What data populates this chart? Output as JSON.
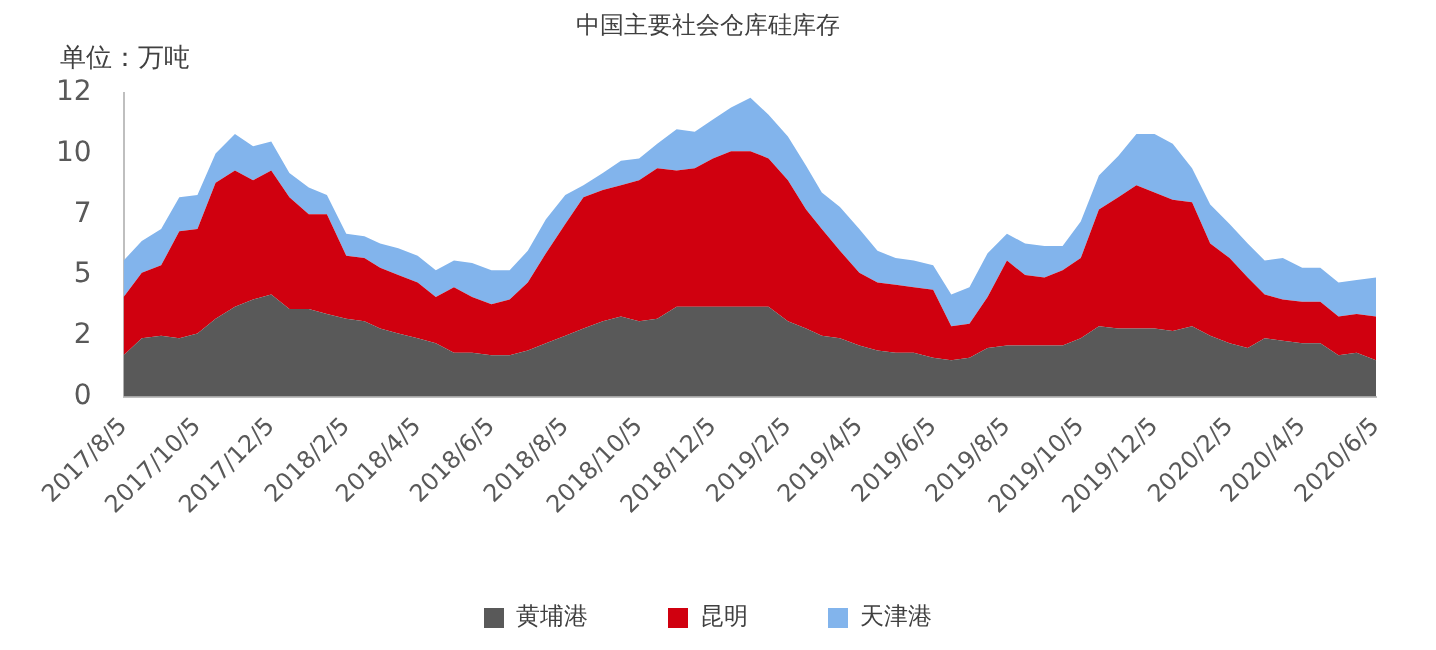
{
  "chart_data": {
    "type": "area",
    "title": "中国主要社会仓库硅库存",
    "annotations": [
      "单位：万吨"
    ],
    "x": [
      "2017-08-05",
      "2017-08-20",
      "2017-09-05",
      "2017-09-20",
      "2017-10-05",
      "2017-10-20",
      "2017-11-05",
      "2017-11-20",
      "2017-12-05",
      "2017-12-20",
      "2018-01-05",
      "2018-01-20",
      "2018-02-05",
      "2018-02-20",
      "2018-03-05",
      "2018-03-20",
      "2018-04-05",
      "2018-04-20",
      "2018-05-05",
      "2018-05-20",
      "2018-06-05",
      "2018-06-20",
      "2018-07-05",
      "2018-07-20",
      "2018-08-05",
      "2018-08-20",
      "2018-09-05",
      "2018-09-20",
      "2018-10-05",
      "2018-10-20",
      "2018-11-05",
      "2018-11-20",
      "2018-12-05",
      "2018-12-20",
      "2019-01-05",
      "2019-01-20",
      "2019-02-05",
      "2019-02-20",
      "2019-03-05",
      "2019-03-20",
      "2019-04-05",
      "2019-04-20",
      "2019-05-05",
      "2019-05-20",
      "2019-06-05",
      "2019-06-20",
      "2019-07-05",
      "2019-07-20",
      "2019-08-05",
      "2019-08-20",
      "2019-09-05",
      "2019-09-20",
      "2019-10-05",
      "2019-10-20",
      "2019-11-05",
      "2019-11-20",
      "2019-12-05",
      "2019-12-20",
      "2020-01-05",
      "2020-01-20",
      "2020-02-05",
      "2020-02-20",
      "2020-03-05",
      "2020-03-20",
      "2020-04-05",
      "2020-04-20",
      "2020-05-05",
      "2020-05-20",
      "2020-06-05"
    ],
    "stacked": true,
    "series": [
      {
        "name": "黄埔港",
        "color": "#595959",
        "values": [
          1.7,
          2.4,
          2.5,
          2.4,
          2.6,
          3.2,
          3.7,
          4.0,
          4.2,
          3.6,
          3.6,
          3.4,
          3.2,
          3.1,
          2.8,
          2.6,
          2.4,
          2.2,
          1.8,
          1.8,
          1.7,
          1.7,
          1.9,
          2.2,
          2.5,
          2.8,
          3.1,
          3.3,
          3.1,
          3.2,
          3.7,
          3.7,
          3.7,
          3.7,
          3.7,
          3.7,
          3.1,
          2.8,
          2.5,
          2.4,
          2.1,
          1.9,
          1.8,
          1.8,
          1.6,
          1.5,
          1.6,
          2.0,
          2.1,
          2.1,
          2.1,
          2.1,
          2.4,
          2.9,
          2.8,
          2.8,
          2.8,
          2.7,
          2.9,
          2.5,
          2.2,
          2.0,
          2.4,
          2.3,
          2.2,
          2.2,
          1.7,
          1.8,
          1.5
        ]
      },
      {
        "name": "昆明",
        "color": "#d0000f",
        "values": [
          2.4,
          2.7,
          2.9,
          4.4,
          4.3,
          5.6,
          5.6,
          4.9,
          5.1,
          4.6,
          3.9,
          4.1,
          2.6,
          2.6,
          2.5,
          2.4,
          2.3,
          1.9,
          2.7,
          2.3,
          2.1,
          2.3,
          2.8,
          3.7,
          4.6,
          5.4,
          5.4,
          5.4,
          5.8,
          6.2,
          5.6,
          5.7,
          6.1,
          6.4,
          6.4,
          6.1,
          5.8,
          4.9,
          4.4,
          3.6,
          3.0,
          2.8,
          2.8,
          2.7,
          2.8,
          1.4,
          1.4,
          2.1,
          3.5,
          2.9,
          2.8,
          3.1,
          3.3,
          4.8,
          5.4,
          5.9,
          5.6,
          5.4,
          5.1,
          3.8,
          3.5,
          2.9,
          1.8,
          1.7,
          1.7,
          1.7,
          1.6,
          1.6,
          1.8
        ]
      },
      {
        "name": "天津港",
        "color": "#82b4ec",
        "values": [
          1.5,
          1.3,
          1.5,
          1.4,
          1.4,
          1.2,
          1.5,
          1.4,
          1.2,
          1.0,
          1.1,
          0.8,
          0.9,
          0.9,
          1.0,
          1.1,
          1.1,
          1.1,
          1.1,
          1.4,
          1.4,
          1.2,
          1.3,
          1.4,
          1.2,
          0.5,
          0.7,
          1.0,
          0.9,
          1.0,
          1.7,
          1.5,
          1.6,
          1.8,
          2.2,
          1.8,
          1.8,
          1.8,
          1.5,
          1.8,
          1.8,
          1.3,
          1.1,
          1.1,
          1.0,
          1.3,
          1.5,
          1.8,
          1.1,
          1.3,
          1.3,
          1.0,
          1.5,
          1.4,
          1.7,
          2.1,
          2.4,
          2.3,
          1.4,
          1.6,
          1.4,
          1.4,
          1.4,
          1.7,
          1.4,
          1.4,
          1.4,
          1.4,
          1.6
        ]
      }
    ],
    "xlim": [
      "2017-08-05",
      "2020-06-05"
    ],
    "xticks": [
      {
        "value": "2017-08-05",
        "label": "2017/8/5"
      },
      {
        "value": "2017-10-05",
        "label": "2017/10/5"
      },
      {
        "value": "2017-12-05",
        "label": "2017/12/5"
      },
      {
        "value": "2018-02-05",
        "label": "2018/2/5"
      },
      {
        "value": "2018-04-05",
        "label": "2018/4/5"
      },
      {
        "value": "2018-06-05",
        "label": "2018/6/5"
      },
      {
        "value": "2018-08-05",
        "label": "2018/8/5"
      },
      {
        "value": "2018-10-05",
        "label": "2018/10/5"
      },
      {
        "value": "2018-12-05",
        "label": "2018/12/5"
      },
      {
        "value": "2019-02-05",
        "label": "2019/2/5"
      },
      {
        "value": "2019-04-05",
        "label": "2019/4/5"
      },
      {
        "value": "2019-06-05",
        "label": "2019/6/5"
      },
      {
        "value": "2019-08-05",
        "label": "2019/8/5"
      },
      {
        "value": "2019-10-05",
        "label": "2019/10/5"
      },
      {
        "value": "2019-12-05",
        "label": "2019/12/5"
      },
      {
        "value": "2020-02-05",
        "label": "2020/2/5"
      },
      {
        "value": "2020-04-05",
        "label": "2020/4/5"
      },
      {
        "value": "2020-06-05",
        "label": "2020/6/5"
      }
    ],
    "ylim": [
      0,
      12.5
    ],
    "yticks": [
      0,
      {
        "value": 2.5,
        "label": "2"
      },
      5,
      {
        "value": 7.5,
        "label": "7"
      },
      10,
      {
        "value": 12.5,
        "label": "12"
      }
    ],
    "grid": false,
    "legend": "bottom"
  }
}
